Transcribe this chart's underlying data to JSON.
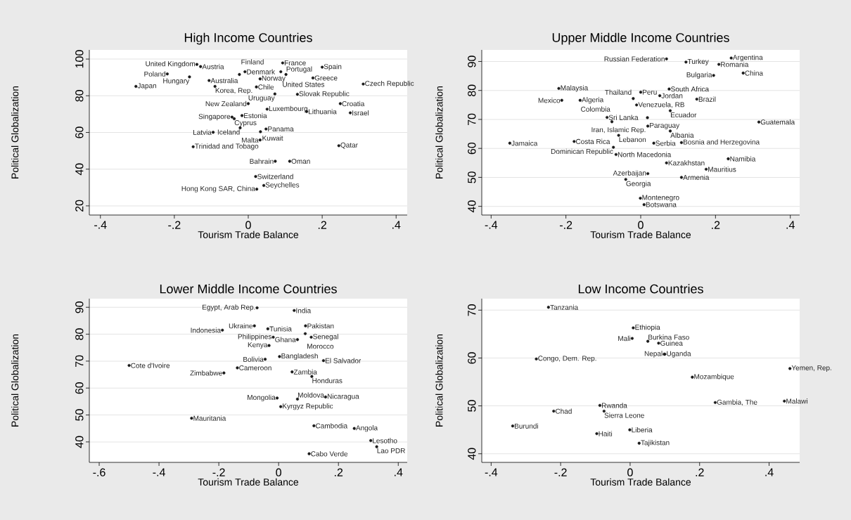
{
  "chart_data": [
    {
      "type": "scatter",
      "title": "High Income Countries",
      "xlabel": "Tourism Trade Balance",
      "ylabel": "Political Globalization",
      "color": "#1a1a1a",
      "grid": "y",
      "xlim": [
        -0.43,
        0.43
      ],
      "ylim": [
        15,
        105
      ],
      "xticks": [
        {
          "value": -0.4,
          "label": "-.4"
        },
        {
          "value": -0.2,
          "label": "-.2"
        },
        0,
        {
          "value": 0.2,
          "label": ".2"
        },
        {
          "value": 0.4,
          "label": ".4"
        }
      ],
      "yticks": [
        20,
        40,
        60,
        80,
        100
      ],
      "x": [
        -0.139,
        -0.129,
        -0.219,
        -0.159,
        -0.106,
        -0.304,
        -0.09,
        0.022,
        -0.024,
        -0.009,
        0.032,
        0.093,
        0.2,
        0.088,
        0.102,
        0.175,
        0.311,
        0.072,
        0.133,
        0.0,
        0.249,
        0.051,
        0.158,
        0.276,
        -0.017,
        -0.044,
        -0.038,
        -0.022,
        -0.095,
        0.048,
        0.033,
        0.032,
        -0.149,
        0.245,
        0.073,
        0.112,
        0.02,
        0.042,
        0.023
      ],
      "values": [
        97.1,
        95.9,
        91.9,
        90.3,
        88.3,
        85.1,
        85.1,
        84.8,
        91.6,
        93.1,
        89.2,
        97.9,
        95.6,
        93.1,
        91.6,
        89.7,
        86.4,
        81.0,
        80.8,
        75.7,
        75.7,
        72.7,
        71.4,
        70.7,
        69.2,
        68.4,
        67.5,
        62.5,
        60.1,
        61.9,
        60.4,
        55.9,
        52.2,
        52.8,
        44.3,
        44.3,
        36.0,
        31.1,
        29.1
      ],
      "annotations": [
        {
          "text": "United Kingdom",
          "x": -0.139,
          "y": 97.1
        },
        {
          "text": "Austria",
          "x": -0.129,
          "y": 95.9
        },
        {
          "text": "Poland",
          "x": -0.219,
          "y": 91.9
        },
        {
          "text": "Hungary",
          "x": -0.159,
          "y": 90.3
        },
        {
          "text": "Australia",
          "x": -0.106,
          "y": 88.3
        },
        {
          "text": "Japan",
          "x": -0.304,
          "y": 85.1
        },
        {
          "text": "Korea, Rep.",
          "x": -0.09,
          "y": 85.1
        },
        {
          "text": "Chile",
          "x": 0.022,
          "y": 84.8
        },
        {
          "text": "Finland",
          "x": -0.024,
          "y": 91.6
        },
        {
          "text": "Denmark",
          "x": -0.009,
          "y": 93.1
        },
        {
          "text": "Norway",
          "x": 0.032,
          "y": 89.2
        },
        {
          "text": "France",
          "x": 0.093,
          "y": 97.9
        },
        {
          "text": "Spain",
          "x": 0.2,
          "y": 95.6
        },
        {
          "text": "United States",
          "x": 0.088,
          "y": 93.1
        },
        {
          "text": "Portugal",
          "x": 0.102,
          "y": 91.6
        },
        {
          "text": "Greece",
          "x": 0.175,
          "y": 89.7
        },
        {
          "text": "Czech Republic",
          "x": 0.311,
          "y": 86.4
        },
        {
          "text": "Uruguay",
          "x": 0.072,
          "y": 81.0
        },
        {
          "text": "Slovak Republic",
          "x": 0.133,
          "y": 80.8
        },
        {
          "text": "New Zealand",
          "x": 0.0,
          "y": 75.7
        },
        {
          "text": "Croatia",
          "x": 0.249,
          "y": 75.7
        },
        {
          "text": "Luxembourg",
          "x": 0.051,
          "y": 72.7
        },
        {
          "text": "Lithuania",
          "x": 0.158,
          "y": 71.4
        },
        {
          "text": "Israel",
          "x": 0.276,
          "y": 70.7
        },
        {
          "text": "Estonia",
          "x": -0.017,
          "y": 69.2
        },
        {
          "text": "Singapore",
          "x": -0.044,
          "y": 68.4
        },
        {
          "text": "Cyprus",
          "x": -0.038,
          "y": 67.5
        },
        {
          "text": "Iceland",
          "x": -0.022,
          "y": 62.5
        },
        {
          "text": "Latvia",
          "x": -0.095,
          "y": 60.1
        },
        {
          "text": "Panama",
          "x": 0.048,
          "y": 61.9
        },
        {
          "text": "Kuwait",
          "x": 0.033,
          "y": 60.4
        },
        {
          "text": "Malta",
          "x": 0.032,
          "y": 55.9
        },
        {
          "text": "Trinidad and Tobago",
          "x": -0.149,
          "y": 52.2
        },
        {
          "text": "Qatar",
          "x": 0.245,
          "y": 52.8
        },
        {
          "text": "Bahrain",
          "x": 0.073,
          "y": 44.3
        },
        {
          "text": "Oman",
          "x": 0.112,
          "y": 44.3
        },
        {
          "text": "Switzerland",
          "x": 0.02,
          "y": 36.0
        },
        {
          "text": "Seychelles",
          "x": 0.042,
          "y": 31.1
        },
        {
          "text": "Hong Kong SAR, China",
          "x": 0.023,
          "y": 29.1
        }
      ]
    },
    {
      "type": "scatter",
      "title": "Upper Middle Income Countries",
      "xlabel": "Tourism Trade Balance",
      "ylabel": "Political Globalization",
      "color": "#1a1a1a",
      "grid": "y",
      "xlim": [
        -0.425,
        0.425
      ],
      "ylim": [
        37,
        94
      ],
      "xticks": [
        {
          "value": -0.4,
          "label": "-.4"
        },
        {
          "value": -0.2,
          "label": "-.2"
        },
        0,
        {
          "value": 0.2,
          "label": ".2"
        },
        {
          "value": 0.4,
          "label": ".4"
        }
      ],
      "yticks": [
        40,
        50,
        60,
        70,
        80,
        90
      ],
      "x": [
        0.069,
        0.242,
        0.121,
        0.209,
        0.195,
        0.274,
        -0.219,
        -0.211,
        -0.162,
        0.0,
        0.076,
        0.051,
        -0.02,
        0.15,
        -0.011,
        0.079,
        -0.09,
        0.018,
        -0.077,
        0.316,
        0.019,
        0.079,
        -0.059,
        -0.35,
        -0.178,
        0.035,
        0.109,
        -0.073,
        -0.066,
        0.234,
        0.069,
        0.175,
        0.019,
        0.109,
        -0.04,
        -0.001,
        0.009
      ],
      "values": [
        90.9,
        91.2,
        89.8,
        89.0,
        85.2,
        86.0,
        80.7,
        76.6,
        76.6,
        79.4,
        80.5,
        78.2,
        77.2,
        77.0,
        75.0,
        73.0,
        70.7,
        70.6,
        69.2,
        69.1,
        67.7,
        66.0,
        64.5,
        61.8,
        62.4,
        61.8,
        62.0,
        60.4,
        57.9,
        56.4,
        55.0,
        52.8,
        51.3,
        50.0,
        49.3,
        42.8,
        40.6
      ],
      "annotations": [
        {
          "text": "Russian Federation",
          "x": 0.069,
          "y": 90.9
        },
        {
          "text": "Argentina",
          "x": 0.242,
          "y": 91.2
        },
        {
          "text": "Turkey",
          "x": 0.121,
          "y": 89.8
        },
        {
          "text": "Romania",
          "x": 0.209,
          "y": 89.0
        },
        {
          "text": "Bulgaria",
          "x": 0.195,
          "y": 85.2
        },
        {
          "text": "China",
          "x": 0.274,
          "y": 86.0
        },
        {
          "text": "Malaysia",
          "x": -0.219,
          "y": 80.7
        },
        {
          "text": "Mexico",
          "x": -0.211,
          "y": 76.6
        },
        {
          "text": "Algeria",
          "x": -0.162,
          "y": 76.6
        },
        {
          "text": "Peru",
          "x": 0.0,
          "y": 79.4
        },
        {
          "text": "South Africa",
          "x": 0.076,
          "y": 80.5
        },
        {
          "text": "Jordan",
          "x": 0.051,
          "y": 78.2
        },
        {
          "text": "Thailand",
          "x": -0.02,
          "y": 77.2
        },
        {
          "text": "Brazil",
          "x": 0.15,
          "y": 77.0
        },
        {
          "text": "Venezuela, RB",
          "x": -0.011,
          "y": 75.0
        },
        {
          "text": "Ecuador",
          "x": 0.079,
          "y": 73.0
        },
        {
          "text": "Sri Lanka",
          "x": -0.09,
          "y": 70.7
        },
        {
          "text": "Iran, Islamic Rep.",
          "x": 0.018,
          "y": 70.6
        },
        {
          "text": "Colombia",
          "x": -0.077,
          "y": 69.2
        },
        {
          "text": "Guatemala",
          "x": 0.316,
          "y": 69.1
        },
        {
          "text": "Paraguay",
          "x": 0.019,
          "y": 67.7
        },
        {
          "text": "Albania",
          "x": 0.079,
          "y": 66.0
        },
        {
          "text": "Lebanon",
          "x": -0.059,
          "y": 64.5
        },
        {
          "text": "Jamaica",
          "x": -0.35,
          "y": 61.8
        },
        {
          "text": "Costa Rica",
          "x": -0.178,
          "y": 62.4
        },
        {
          "text": "Serbia",
          "x": 0.035,
          "y": 61.8
        },
        {
          "text": "Bosnia and Herzegovina",
          "x": 0.109,
          "y": 62.0
        },
        {
          "text": "Dominican Republic",
          "x": -0.073,
          "y": 60.4
        },
        {
          "text": "North Macedonia",
          "x": -0.066,
          "y": 57.9
        },
        {
          "text": "Namibia",
          "x": 0.234,
          "y": 56.4
        },
        {
          "text": "Kazakhstan",
          "x": 0.069,
          "y": 55.0
        },
        {
          "text": "Mauritius",
          "x": 0.175,
          "y": 52.8
        },
        {
          "text": "Azerbaijan",
          "x": 0.019,
          "y": 51.3
        },
        {
          "text": "Armenia",
          "x": 0.109,
          "y": 50.0
        },
        {
          "text": "Georgia",
          "x": -0.04,
          "y": 49.3
        },
        {
          "text": "Montenegro",
          "x": -0.001,
          "y": 42.8
        },
        {
          "text": "Botswana",
          "x": 0.009,
          "y": 40.6
        }
      ]
    },
    {
      "type": "scatter",
      "title": "Lower Middle Income Countries",
      "xlabel": "Tourism Trade Balance",
      "ylabel": "Political Globalization",
      "color": "#1a1a1a",
      "grid": "y",
      "xlim": [
        -0.633,
        0.43
      ],
      "ylim": [
        32.4,
        93.2
      ],
      "xticks": [
        {
          "value": -0.6,
          "label": "-.6"
        },
        {
          "value": -0.4,
          "label": "-.4"
        },
        {
          "value": -0.2,
          "label": "-.2"
        },
        0,
        {
          "value": 0.2,
          "label": ".2"
        },
        {
          "value": 0.4,
          "label": ".4"
        }
      ],
      "yticks": [
        40,
        50,
        60,
        70,
        80,
        90
      ],
      "x": [
        -0.072,
        0.052,
        -0.081,
        -0.036,
        -0.188,
        0.09,
        0.089,
        -0.018,
        0.109,
        0.063,
        -0.032,
        0.003,
        -0.045,
        0.15,
        -0.5,
        -0.138,
        -0.183,
        0.045,
        0.111,
        -0.005,
        0.063,
        0.157,
        0.007,
        -0.291,
        0.118,
        0.253,
        0.308,
        0.328,
        0.102
      ],
      "values": [
        89.8,
        88.8,
        83.1,
        82.0,
        81.5,
        83.1,
        80.2,
        78.9,
        78.9,
        78.0,
        75.8,
        71.7,
        70.7,
        70.2,
        68.4,
        67.5,
        65.6,
        66.0,
        64.3,
        56.3,
        55.9,
        56.7,
        53.1,
        48.8,
        46.0,
        45.0,
        40.5,
        38.2,
        35.6
      ],
      "annotations": [
        {
          "text": "Egypt, Arab Rep.",
          "x": -0.072,
          "y": 89.8
        },
        {
          "text": "India",
          "x": 0.052,
          "y": 88.8
        },
        {
          "text": "Ukraine",
          "x": -0.081,
          "y": 83.1
        },
        {
          "text": "Tunisia",
          "x": -0.036,
          "y": 82.0
        },
        {
          "text": "Indonesia",
          "x": -0.188,
          "y": 81.5
        },
        {
          "text": "Pakistan",
          "x": 0.09,
          "y": 83.1
        },
        {
          "text": "Morocco",
          "x": 0.089,
          "y": 80.2
        },
        {
          "text": "Philippines",
          "x": -0.018,
          "y": 78.9
        },
        {
          "text": "Senegal",
          "x": 0.109,
          "y": 78.9
        },
        {
          "text": "Ghana",
          "x": 0.063,
          "y": 78.0
        },
        {
          "text": "Kenya",
          "x": -0.032,
          "y": 75.8
        },
        {
          "text": "Bangladesh",
          "x": 0.003,
          "y": 71.7
        },
        {
          "text": "Bolivia",
          "x": -0.045,
          "y": 70.7
        },
        {
          "text": "El Salvador",
          "x": 0.15,
          "y": 70.2
        },
        {
          "text": "Cote d'Ivoire",
          "x": -0.5,
          "y": 68.4
        },
        {
          "text": "Cameroon",
          "x": -0.138,
          "y": 67.5
        },
        {
          "text": "Zimbabwe",
          "x": -0.183,
          "y": 65.6
        },
        {
          "text": "Zambia",
          "x": 0.045,
          "y": 66.0
        },
        {
          "text": "Honduras",
          "x": 0.111,
          "y": 64.3
        },
        {
          "text": "Mongolia",
          "x": -0.005,
          "y": 56.3
        },
        {
          "text": "Moldova",
          "x": 0.063,
          "y": 55.9
        },
        {
          "text": "Nicaragua",
          "x": 0.157,
          "y": 56.7
        },
        {
          "text": "Kyrgyz Republic",
          "x": 0.007,
          "y": 53.1
        },
        {
          "text": "Mauritania",
          "x": -0.291,
          "y": 48.8
        },
        {
          "text": "Cambodia",
          "x": 0.118,
          "y": 46.0
        },
        {
          "text": "Angola",
          "x": 0.253,
          "y": 45.0
        },
        {
          "text": "Lesotho",
          "x": 0.308,
          "y": 40.5
        },
        {
          "text": "Lao PDR",
          "x": 0.328,
          "y": 38.2
        },
        {
          "text": "Cabo Verde",
          "x": 0.102,
          "y": 35.6
        }
      ]
    },
    {
      "type": "scatter",
      "title": "Low Income Countries",
      "xlabel": "Tourism Trade Balance",
      "ylabel": "Political Globalization",
      "color": "#1a1a1a",
      "grid": "y",
      "xlim": [
        -0.427,
        0.488
      ],
      "ylim": [
        38.2,
        72.4
      ],
      "xticks": [
        {
          "value": -0.4,
          "label": "-.4"
        },
        {
          "value": -0.2,
          "label": "-.2"
        },
        0,
        {
          "value": 0.2,
          "label": ".2"
        },
        {
          "value": 0.4,
          "label": ".4"
        }
      ],
      "yticks": [
        40,
        50,
        60,
        70
      ],
      "x": [
        -0.235,
        0.009,
        0.006,
        0.051,
        0.082,
        0.1,
        0.098,
        -0.27,
        0.46,
        0.179,
        0.245,
        0.444,
        -0.087,
        -0.22,
        -0.075,
        -0.338,
        -0.096,
        -0.001,
        0.026
      ],
      "values": [
        70.6,
        66.3,
        64.1,
        63.5,
        63.1,
        60.8,
        60.8,
        59.8,
        57.8,
        56.0,
        50.7,
        51.0,
        50.1,
        48.9,
        48.9,
        45.8,
        44.2,
        45.0,
        42.2
      ],
      "annotations": [
        {
          "text": "Tanzania",
          "x": -0.235,
          "y": 70.6
        },
        {
          "text": "Ethiopia",
          "x": 0.009,
          "y": 66.3
        },
        {
          "text": "Mali",
          "x": 0.006,
          "y": 64.1
        },
        {
          "text": "Burkina Faso",
          "x": 0.051,
          "y": 63.5
        },
        {
          "text": "Guinea",
          "x": 0.082,
          "y": 63.1
        },
        {
          "text": "Uganda",
          "x": 0.1,
          "y": 60.8
        },
        {
          "text": "Nepal",
          "x": 0.098,
          "y": 60.8
        },
        {
          "text": "Congo, Dem. Rep.",
          "x": -0.27,
          "y": 59.8
        },
        {
          "text": "Yemen, Rep.",
          "x": 0.46,
          "y": 57.8
        },
        {
          "text": "Mozambique",
          "x": 0.179,
          "y": 56.0
        },
        {
          "text": "Gambia, The",
          "x": 0.245,
          "y": 50.7
        },
        {
          "text": "Malawi",
          "x": 0.444,
          "y": 51.0
        },
        {
          "text": "Rwanda",
          "x": -0.087,
          "y": 50.1
        },
        {
          "text": "Chad",
          "x": -0.22,
          "y": 48.9
        },
        {
          "text": "Sierra Leone",
          "x": -0.075,
          "y": 48.9
        },
        {
          "text": "Burundi",
          "x": -0.338,
          "y": 45.8
        },
        {
          "text": "Haiti",
          "x": -0.096,
          "y": 44.2
        },
        {
          "text": "Liberia",
          "x": -0.001,
          "y": 45.0
        },
        {
          "text": "Tajikistan",
          "x": 0.026,
          "y": 42.2
        }
      ]
    }
  ]
}
